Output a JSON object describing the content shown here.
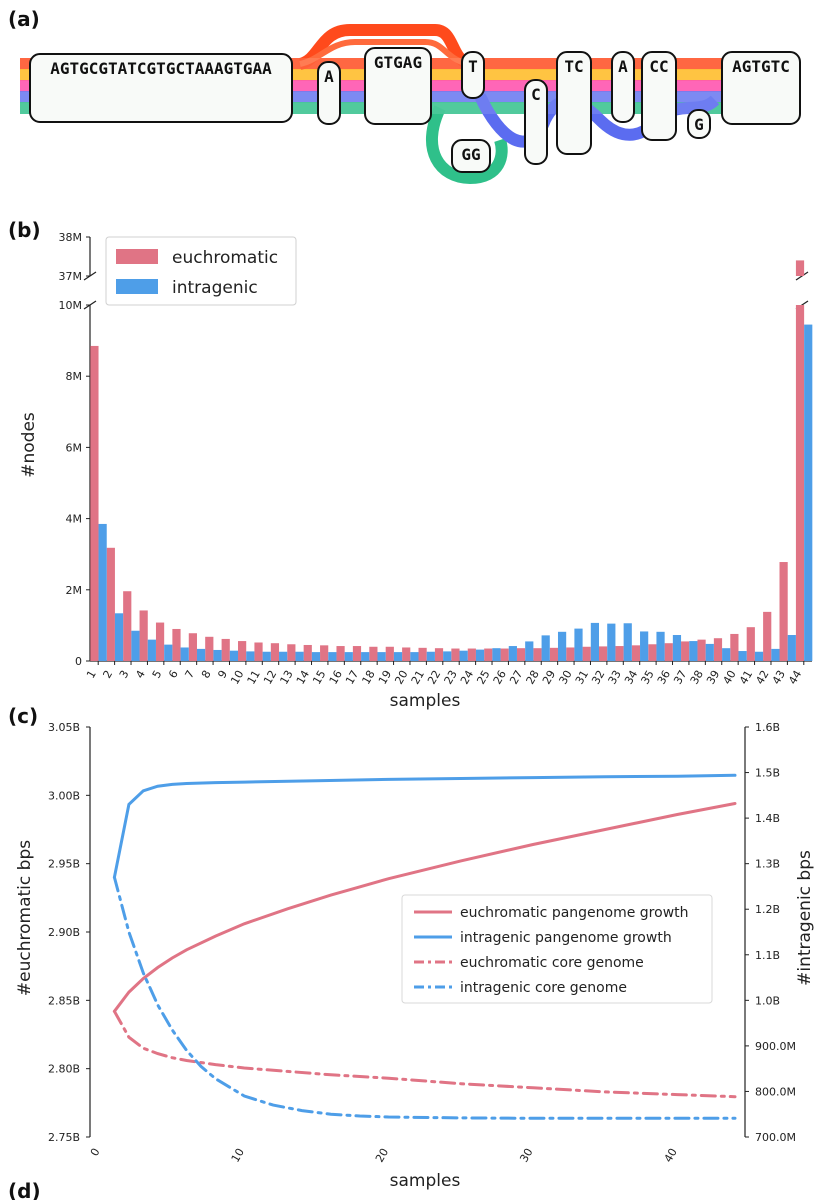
{
  "panel_a": {
    "label": "(a)",
    "nodes": [
      {
        "seq": "AGTGCGTATCGTGCTAAAGTGAA"
      },
      {
        "seq": "A"
      },
      {
        "seq": "GTGAG"
      },
      {
        "seq": "T"
      },
      {
        "seq": "GG"
      },
      {
        "seq": "C"
      },
      {
        "seq": "TC"
      },
      {
        "seq": "A"
      },
      {
        "seq": "CC"
      },
      {
        "seq": "G"
      },
      {
        "seq": "AGTGTC"
      }
    ],
    "path_colors": [
      "#ff4a1c",
      "#ffb81c",
      "#ff3ea5",
      "#5b6cf0",
      "#2fc08a"
    ]
  },
  "panel_b": {
    "label": "(b)",
    "colors": {
      "euchromatic": "#e07485",
      "intragenic": "#4e9ee8"
    },
    "chart_data": {
      "type": "bar",
      "xlabel": "samples",
      "ylabel": "#nodes",
      "categories": [
        "1",
        "2",
        "3",
        "4",
        "5",
        "6",
        "7",
        "8",
        "9",
        "10",
        "11",
        "12",
        "13",
        "14",
        "15",
        "16",
        "17",
        "18",
        "19",
        "20",
        "21",
        "22",
        "23",
        "24",
        "25",
        "26",
        "27",
        "28",
        "29",
        "30",
        "31",
        "32",
        "33",
        "34",
        "35",
        "36",
        "37",
        "38",
        "39",
        "40",
        "41",
        "42",
        "43",
        "44"
      ],
      "series": [
        {
          "name": "euchromatic",
          "values": [
            8.85,
            3.18,
            1.96,
            1.42,
            1.08,
            0.9,
            0.78,
            0.68,
            0.62,
            0.56,
            0.52,
            0.5,
            0.47,
            0.45,
            0.44,
            0.42,
            0.42,
            0.4,
            0.4,
            0.38,
            0.37,
            0.36,
            0.35,
            0.35,
            0.35,
            0.35,
            0.36,
            0.36,
            0.37,
            0.38,
            0.4,
            0.41,
            0.42,
            0.44,
            0.47,
            0.5,
            0.55,
            0.6,
            0.64,
            0.76,
            0.95,
            1.38,
            2.78,
            37.4
          ]
        },
        {
          "name": "intragenic",
          "values": [
            3.85,
            1.34,
            0.85,
            0.6,
            0.46,
            0.38,
            0.34,
            0.31,
            0.29,
            0.27,
            0.26,
            0.26,
            0.26,
            0.25,
            0.25,
            0.25,
            0.25,
            0.25,
            0.25,
            0.25,
            0.26,
            0.27,
            0.29,
            0.32,
            0.36,
            0.42,
            0.55,
            0.72,
            0.82,
            0.91,
            1.07,
            1.05,
            1.06,
            0.83,
            0.82,
            0.73,
            0.56,
            0.48,
            0.36,
            0.28,
            0.26,
            0.34,
            0.73,
            9.45
          ]
        }
      ],
      "units_note": "values in millions",
      "ytick_labels_lower": [
        "0",
        "2M",
        "4M",
        "6M",
        "8M",
        "10M"
      ],
      "ytick_values_lower": [
        0,
        2,
        4,
        6,
        8,
        10
      ],
      "ytick_labels_upper": [
        "37M",
        "38M"
      ],
      "ytick_values_upper": [
        37,
        38
      ],
      "ylim_lower": [
        0,
        10
      ],
      "ylim_upper": [
        37,
        38
      ],
      "legend_position": "top-left"
    }
  },
  "panel_c": {
    "label": "(c)",
    "colors": {
      "euchromatic": "#e07485",
      "intragenic": "#4e9ee8"
    },
    "chart_data": {
      "type": "line",
      "xlabel": "samples",
      "ylabel_left": "#euchromatic bps",
      "ylabel_right": "#intragenic bps",
      "xticks": [
        0,
        10,
        20,
        30,
        40
      ],
      "xlim": [
        0,
        44
      ],
      "ylim_left": [
        2.75,
        3.05
      ],
      "ytick_values_left": [
        2.75,
        2.8,
        2.85,
        2.9,
        2.95,
        3.0,
        3.05
      ],
      "ytick_labels_left": [
        "2.75B",
        "2.80B",
        "2.85B",
        "2.90B",
        "2.95B",
        "3.00B",
        "3.05B"
      ],
      "ylim_right": [
        0.7,
        1.6
      ],
      "ytick_values_right": [
        0.7,
        0.8,
        0.9,
        1.0,
        1.1,
        1.2,
        1.3,
        1.4,
        1.5,
        1.6
      ],
      "ytick_labels_right": [
        "700.0M",
        "800.0M",
        "900.0M",
        "1.0B",
        "1.1B",
        "1.2B",
        "1.3B",
        "1.4B",
        "1.5B",
        "1.6B"
      ],
      "legend_position": "center-right",
      "series": [
        {
          "name": "euchromatic pangenome growth",
          "axis": "left",
          "style": "solid",
          "color_key": "euchromatic",
          "x": [
            1,
            2,
            3,
            4,
            5,
            6,
            8,
            10,
            13,
            16,
            20,
            25,
            30,
            35,
            40,
            44
          ],
          "y": [
            2.842,
            2.856,
            2.866,
            2.874,
            2.881,
            2.887,
            2.897,
            2.906,
            2.917,
            2.927,
            2.939,
            2.952,
            2.964,
            2.975,
            2.986,
            2.994
          ]
        },
        {
          "name": "intragenic pangenome growth",
          "axis": "right",
          "style": "solid",
          "color_key": "intragenic",
          "x": [
            1,
            2,
            3,
            4,
            5,
            6,
            8,
            10,
            15,
            20,
            25,
            30,
            35,
            40,
            44
          ],
          "y": [
            1.27,
            1.43,
            1.46,
            1.47,
            1.474,
            1.476,
            1.478,
            1.479,
            1.482,
            1.485,
            1.487,
            1.489,
            1.491,
            1.492,
            1.494
          ]
        },
        {
          "name": "euchromatic core genome",
          "axis": "left",
          "style": "dashdot",
          "color_key": "euchromatic",
          "x": [
            1,
            2,
            3,
            4,
            5,
            6,
            8,
            10,
            13,
            16,
            20,
            25,
            30,
            35,
            40,
            44
          ],
          "y": [
            2.842,
            2.823,
            2.815,
            2.811,
            2.808,
            2.806,
            2.803,
            2.8005,
            2.798,
            2.7955,
            2.793,
            2.789,
            2.786,
            2.783,
            2.781,
            2.7795
          ]
        },
        {
          "name": "intragenic core genome",
          "axis": "right",
          "style": "dashdot",
          "color_key": "intragenic",
          "x": [
            1,
            2,
            3,
            4,
            5,
            6,
            7,
            8,
            10,
            12,
            14,
            16,
            18,
            20,
            25,
            30,
            35,
            40,
            44
          ],
          "y": [
            1.27,
            1.15,
            1.06,
            0.99,
            0.935,
            0.89,
            0.855,
            0.828,
            0.79,
            0.77,
            0.758,
            0.75,
            0.746,
            0.744,
            0.742,
            0.741,
            0.741,
            0.741,
            0.741
          ]
        }
      ]
    }
  },
  "panel_d": {
    "label": "(d)"
  }
}
